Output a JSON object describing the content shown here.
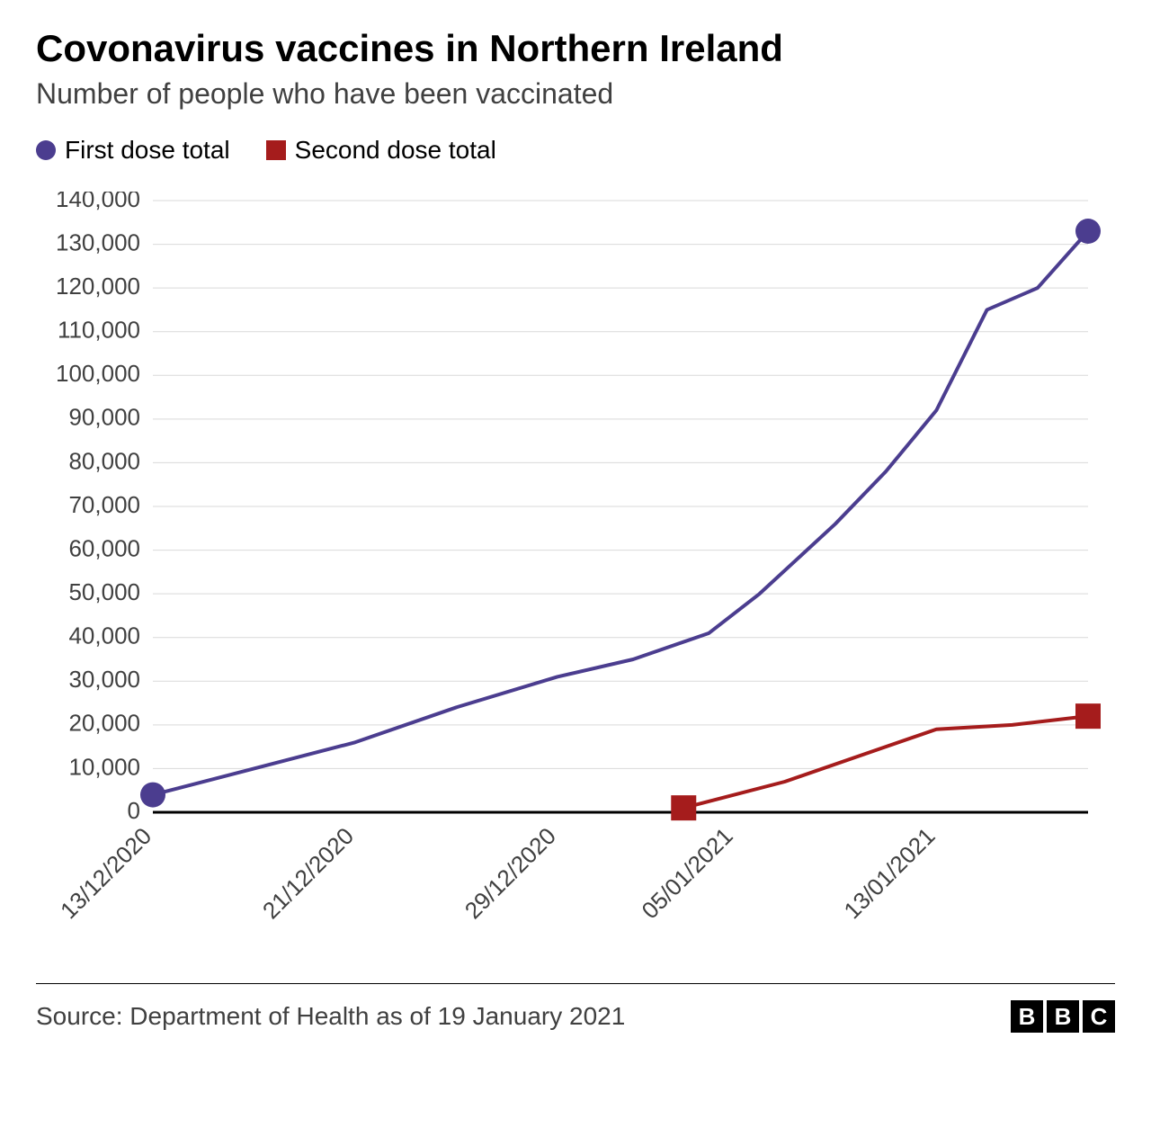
{
  "title": "Covonavirus vaccines in Northern Ireland",
  "subtitle": "Number of people who have been vaccinated",
  "source": "Source: Department of Health as of 19 January 2021",
  "logo_letters": [
    "B",
    "B",
    "C"
  ],
  "chart": {
    "type": "line",
    "background_color": "#ffffff",
    "grid_color": "#d9d9d9",
    "axis_color": "#000000",
    "tick_label_color": "#404040",
    "tick_fontsize": 26,
    "title_fontsize": 42,
    "subtitle_fontsize": 32,
    "line_width": 4,
    "marker_radius": 14,
    "y": {
      "min": 0,
      "max": 140000,
      "tick_step": 10000,
      "ticks": [
        0,
        10000,
        20000,
        30000,
        40000,
        50000,
        60000,
        70000,
        80000,
        90000,
        100000,
        110000,
        120000,
        130000,
        140000
      ],
      "tick_labels": [
        "0",
        "10,000",
        "20,000",
        "30,000",
        "40,000",
        "50,000",
        "60,000",
        "70,000",
        "80,000",
        "90,000",
        "100,000",
        "110,000",
        "120,000",
        "130,000",
        "140,000"
      ]
    },
    "x": {
      "min": 0,
      "max": 37,
      "tick_positions": [
        0,
        8,
        16,
        23,
        31
      ],
      "tick_labels": [
        "13/12/2020",
        "21/12/2020",
        "29/12/2020",
        "05/01/2021",
        "13/01/2021"
      ],
      "label_rotation": -45
    },
    "legend": [
      {
        "label": "First dose total",
        "marker": "circle",
        "color": "#4b3d8f"
      },
      {
        "label": "Second dose total",
        "marker": "square",
        "color": "#a51c1c"
      }
    ],
    "series": [
      {
        "name": "First dose total",
        "color": "#4b3d8f",
        "marker": "circle",
        "end_markers_only": true,
        "data": [
          {
            "x": 0,
            "y": 4000
          },
          {
            "x": 4,
            "y": 10000
          },
          {
            "x": 8,
            "y": 16000
          },
          {
            "x": 12,
            "y": 24000
          },
          {
            "x": 16,
            "y": 31000
          },
          {
            "x": 19,
            "y": 35000
          },
          {
            "x": 22,
            "y": 41000
          },
          {
            "x": 24,
            "y": 50000
          },
          {
            "x": 27,
            "y": 66000
          },
          {
            "x": 29,
            "y": 78000
          },
          {
            "x": 31,
            "y": 92000
          },
          {
            "x": 33,
            "y": 115000
          },
          {
            "x": 35,
            "y": 120000
          },
          {
            "x": 37,
            "y": 133000
          }
        ]
      },
      {
        "name": "Second dose total",
        "color": "#a51c1c",
        "marker": "square",
        "end_markers_only": true,
        "data": [
          {
            "x": 21,
            "y": 1000
          },
          {
            "x": 25,
            "y": 7000
          },
          {
            "x": 29,
            "y": 15000
          },
          {
            "x": 31,
            "y": 19000
          },
          {
            "x": 34,
            "y": 20000
          },
          {
            "x": 37,
            "y": 22000
          }
        ]
      }
    ]
  }
}
